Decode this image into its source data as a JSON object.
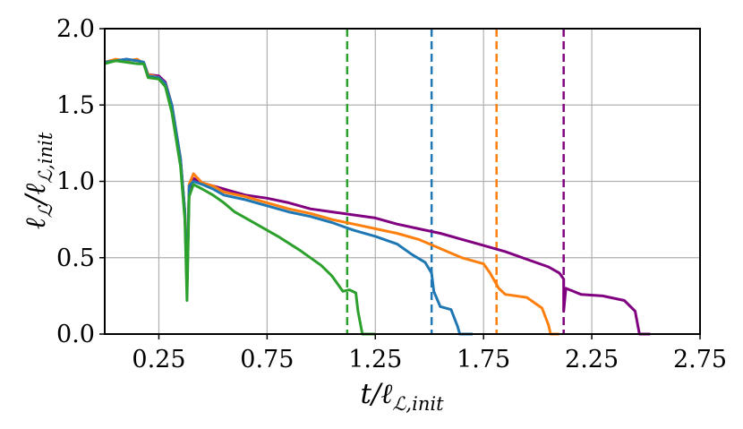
{
  "chart_data": {
    "type": "line",
    "xlabel": "t/ℓ",
    "xlabel_sub": "ℒ,init",
    "ylabel": "ℓ",
    "ylabel_sub1": "ℒ",
    "ylabel_mid": "/ℓ",
    "ylabel_sub2": "ℒ,init",
    "xlim": [
      0.0,
      2.75
    ],
    "ylim": [
      0.0,
      2.0
    ],
    "x_ticks": [
      0.25,
      0.75,
      1.25,
      1.75,
      2.25,
      2.75
    ],
    "x_tick_labels": [
      "0.25",
      "0.75",
      "1.25",
      "1.75",
      "2.25",
      "2.75"
    ],
    "y_ticks": [
      0.0,
      0.5,
      1.0,
      1.5,
      2.0
    ],
    "y_tick_labels": [
      "0.0",
      "0.5",
      "1.0",
      "1.5",
      "2.0"
    ],
    "grid": true,
    "vlines": [
      {
        "x": 1.12,
        "color": "#2ca02c"
      },
      {
        "x": 1.51,
        "color": "#1f77b4"
      },
      {
        "x": 1.81,
        "color": "#ff7f0e"
      },
      {
        "x": 2.12,
        "color": "#800080"
      }
    ],
    "series": [
      {
        "color": "#800080",
        "points": [
          [
            0.0,
            1.78
          ],
          [
            0.05,
            1.79
          ],
          [
            0.1,
            1.8
          ],
          [
            0.15,
            1.79
          ],
          [
            0.18,
            1.78
          ],
          [
            0.2,
            1.7
          ],
          [
            0.25,
            1.69
          ],
          [
            0.28,
            1.65
          ],
          [
            0.31,
            1.5
          ],
          [
            0.35,
            1.15
          ],
          [
            0.37,
            0.8
          ],
          [
            0.38,
            0.3
          ],
          [
            0.39,
            0.95
          ],
          [
            0.41,
            1.02
          ],
          [
            0.45,
            0.99
          ],
          [
            0.5,
            0.97
          ],
          [
            0.55,
            0.95
          ],
          [
            0.65,
            0.91
          ],
          [
            0.75,
            0.89
          ],
          [
            0.85,
            0.86
          ],
          [
            0.95,
            0.82
          ],
          [
            1.05,
            0.8
          ],
          [
            1.15,
            0.78
          ],
          [
            1.25,
            0.76
          ],
          [
            1.35,
            0.72
          ],
          [
            1.45,
            0.69
          ],
          [
            1.55,
            0.66
          ],
          [
            1.65,
            0.62
          ],
          [
            1.75,
            0.58
          ],
          [
            1.85,
            0.54
          ],
          [
            1.95,
            0.49
          ],
          [
            2.05,
            0.44
          ],
          [
            2.1,
            0.4
          ],
          [
            2.12,
            0.36
          ],
          [
            2.12,
            0.15
          ],
          [
            2.13,
            0.3
          ],
          [
            2.2,
            0.26
          ],
          [
            2.3,
            0.25
          ],
          [
            2.4,
            0.22
          ],
          [
            2.45,
            0.15
          ],
          [
            2.47,
            0.0
          ],
          [
            2.52,
            0.0
          ]
        ]
      },
      {
        "color": "#ff7f0e",
        "points": [
          [
            0.0,
            1.78
          ],
          [
            0.05,
            1.8
          ],
          [
            0.1,
            1.79
          ],
          [
            0.15,
            1.8
          ],
          [
            0.18,
            1.77
          ],
          [
            0.2,
            1.7
          ],
          [
            0.25,
            1.68
          ],
          [
            0.28,
            1.64
          ],
          [
            0.31,
            1.5
          ],
          [
            0.35,
            1.15
          ],
          [
            0.37,
            0.8
          ],
          [
            0.38,
            0.3
          ],
          [
            0.39,
            0.98
          ],
          [
            0.41,
            1.05
          ],
          [
            0.45,
            0.99
          ],
          [
            0.5,
            0.97
          ],
          [
            0.55,
            0.93
          ],
          [
            0.65,
            0.9
          ],
          [
            0.75,
            0.86
          ],
          [
            0.85,
            0.82
          ],
          [
            0.95,
            0.79
          ],
          [
            1.05,
            0.75
          ],
          [
            1.15,
            0.72
          ],
          [
            1.25,
            0.69
          ],
          [
            1.35,
            0.66
          ],
          [
            1.45,
            0.62
          ],
          [
            1.55,
            0.56
          ],
          [
            1.65,
            0.5
          ],
          [
            1.75,
            0.46
          ],
          [
            1.78,
            0.4
          ],
          [
            1.82,
            0.3
          ],
          [
            1.85,
            0.26
          ],
          [
            1.95,
            0.24
          ],
          [
            2.02,
            0.17
          ],
          [
            2.05,
            0.06
          ],
          [
            2.06,
            0.0
          ],
          [
            2.1,
            0.0
          ]
        ]
      },
      {
        "color": "#1f77b4",
        "points": [
          [
            0.0,
            1.78
          ],
          [
            0.05,
            1.79
          ],
          [
            0.1,
            1.8
          ],
          [
            0.15,
            1.79
          ],
          [
            0.18,
            1.78
          ],
          [
            0.2,
            1.69
          ],
          [
            0.25,
            1.68
          ],
          [
            0.28,
            1.64
          ],
          [
            0.31,
            1.5
          ],
          [
            0.35,
            1.15
          ],
          [
            0.37,
            0.8
          ],
          [
            0.38,
            0.3
          ],
          [
            0.39,
            0.97
          ],
          [
            0.41,
            1.0
          ],
          [
            0.45,
            0.98
          ],
          [
            0.5,
            0.95
          ],
          [
            0.55,
            0.91
          ],
          [
            0.65,
            0.88
          ],
          [
            0.75,
            0.84
          ],
          [
            0.85,
            0.8
          ],
          [
            0.95,
            0.77
          ],
          [
            1.05,
            0.73
          ],
          [
            1.15,
            0.68
          ],
          [
            1.25,
            0.64
          ],
          [
            1.35,
            0.59
          ],
          [
            1.42,
            0.52
          ],
          [
            1.48,
            0.47
          ],
          [
            1.51,
            0.4
          ],
          [
            1.52,
            0.28
          ],
          [
            1.55,
            0.18
          ],
          [
            1.6,
            0.16
          ],
          [
            1.63,
            0.05
          ],
          [
            1.64,
            0.0
          ],
          [
            1.7,
            0.0
          ]
        ]
      },
      {
        "color": "#2ca02c",
        "points": [
          [
            0.0,
            1.77
          ],
          [
            0.05,
            1.79
          ],
          [
            0.1,
            1.78
          ],
          [
            0.15,
            1.77
          ],
          [
            0.18,
            1.77
          ],
          [
            0.2,
            1.68
          ],
          [
            0.25,
            1.67
          ],
          [
            0.28,
            1.62
          ],
          [
            0.31,
            1.45
          ],
          [
            0.35,
            1.1
          ],
          [
            0.37,
            0.75
          ],
          [
            0.38,
            0.22
          ],
          [
            0.39,
            0.9
          ],
          [
            0.41,
            0.98
          ],
          [
            0.45,
            0.95
          ],
          [
            0.5,
            0.91
          ],
          [
            0.55,
            0.86
          ],
          [
            0.6,
            0.8
          ],
          [
            0.7,
            0.72
          ],
          [
            0.8,
            0.64
          ],
          [
            0.9,
            0.55
          ],
          [
            1.0,
            0.45
          ],
          [
            1.05,
            0.38
          ],
          [
            1.1,
            0.28
          ],
          [
            1.13,
            0.29
          ],
          [
            1.16,
            0.27
          ],
          [
            1.17,
            0.15
          ],
          [
            1.19,
            0.0
          ],
          [
            1.25,
            0.0
          ]
        ]
      }
    ]
  }
}
